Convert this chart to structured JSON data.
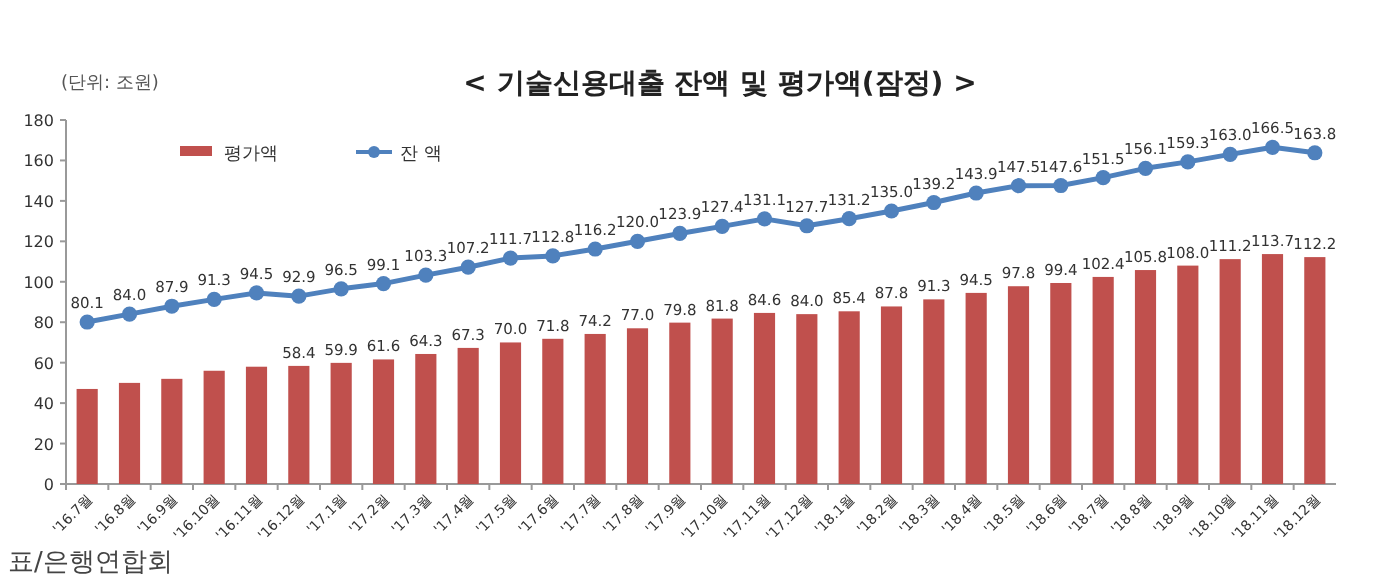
{
  "chart_data": {
    "type": "bar",
    "title": "< 기술신용대출 잔액 및 평가액(잠정) >",
    "annotations": [
      "(단위: 조원)",
      "표/은행연합회"
    ],
    "categories": [
      "'16.7월",
      "'16.8월",
      "'16.9월",
      "'16.10월",
      "'16.11월",
      "'16.12월",
      "'17.1월",
      "'17.2월",
      "'17.3월",
      "'17.4월",
      "'17.5월",
      "'17.6월",
      "'17.7월",
      "'17.8월",
      "'17.9월",
      "'17.10월",
      "'17.11월",
      "'17.12월",
      "'18.1월",
      "'18.2월",
      "'18.3월",
      "'18.4월",
      "'18.5월",
      "'18.6월",
      "'18.7월",
      "'18.8월",
      "'18.9월",
      "'18.10월",
      "'18.11월",
      "'18.12월"
    ],
    "series": [
      {
        "name": "평가액",
        "color": "#c0504d",
        "values": [
          47,
          50,
          52,
          56,
          58,
          58.4,
          59.9,
          61.6,
          64.3,
          67.3,
          70.0,
          71.8,
          74.2,
          77.0,
          79.8,
          81.8,
          84.6,
          84.0,
          85.4,
          87.8,
          91.3,
          94.5,
          97.8,
          99.4,
          102.4,
          105.8,
          108.0,
          111.2,
          113.7,
          112.2
        ],
        "value_labels": [
          null,
          null,
          null,
          null,
          null,
          "58.4",
          "59.9",
          "61.6",
          "64.3",
          "67.3",
          "70.0",
          "71.8",
          "74.2",
          "77.0",
          "79.8",
          "81.8",
          "84.6",
          "84.0",
          "85.4",
          "87.8",
          "91.3",
          "94.5",
          "97.8",
          "99.4",
          "102.4",
          "105.8",
          "108.0",
          "111.2",
          "113.7",
          "112.2"
        ]
      },
      {
        "name": "잔 액",
        "type": "line",
        "color": "#4f81bd",
        "marker": "circle",
        "values": [
          80.1,
          84.0,
          87.9,
          91.3,
          94.5,
          92.9,
          96.5,
          99.1,
          103.3,
          107.2,
          111.7,
          112.8,
          116.2,
          120.0,
          123.9,
          127.4,
          131.1,
          127.7,
          131.2,
          135.0,
          139.2,
          143.9,
          147.5,
          147.6,
          151.5,
          156.1,
          159.3,
          163.0,
          166.5,
          163.8
        ],
        "value_labels": [
          "80.1",
          "84.0",
          "87.9",
          "91.3",
          "94.5",
          "92.9",
          "96.5",
          "99.1",
          "103.3",
          "107.2",
          "111.7",
          "112.8",
          "116.2",
          "120.0",
          "123.9",
          "127.4",
          "131.1",
          "127.7",
          "131.2",
          "135.0",
          "139.2",
          "143.9",
          "147.5",
          "147.6",
          "151.5",
          "156.1",
          "159.3",
          "163.0",
          "166.5",
          "163.8"
        ]
      }
    ],
    "ylim": [
      0,
      180
    ],
    "yticks": [
      0,
      20,
      40,
      60,
      80,
      100,
      120,
      140,
      160,
      180
    ],
    "grid": false,
    "legend": "top left"
  }
}
